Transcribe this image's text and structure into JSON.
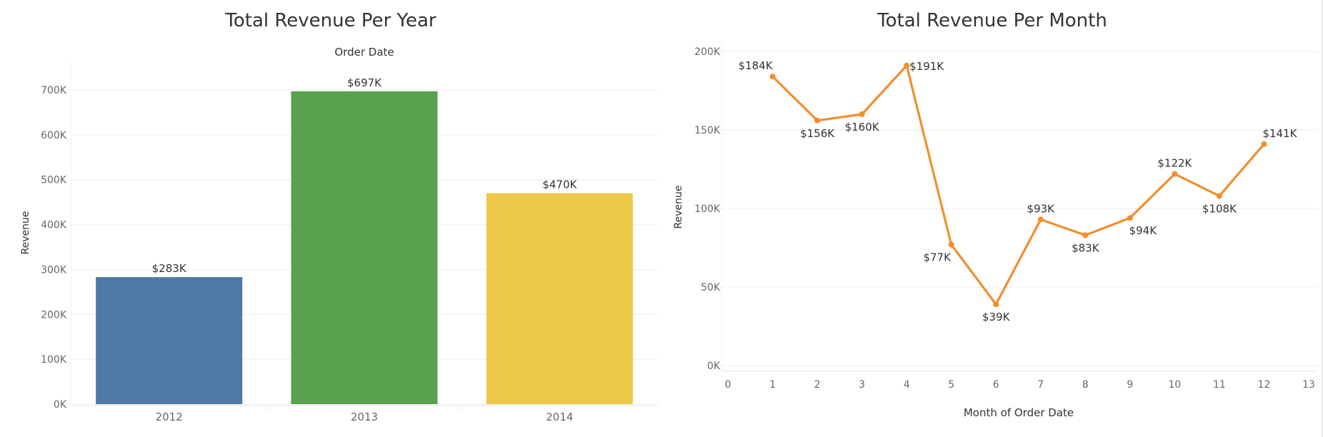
{
  "colors": {
    "bar_2012": "#4e79a7",
    "bar_2013": "#59a14f",
    "bar_2014": "#edc948",
    "line": "#f28e2b",
    "grid": "#ececec",
    "text": "#333333",
    "tick_text": "#666666"
  },
  "chart_data": [
    {
      "type": "bar",
      "title": "Total Revenue Per Year",
      "top_axis_label": "Order Date",
      "xlabel": "",
      "ylabel": "Revenue",
      "categories": [
        "2012",
        "2013",
        "2014"
      ],
      "values": [
        283000,
        697000,
        470000
      ],
      "data_labels": [
        "$283K",
        "$697K",
        "$470K"
      ],
      "ylim": [
        0,
        700000
      ],
      "yticks": [
        0,
        100000,
        200000,
        300000,
        400000,
        500000,
        600000,
        700000
      ],
      "ytick_labels": [
        "0K",
        "100K",
        "200K",
        "300K",
        "400K",
        "500K",
        "600K",
        "700K"
      ],
      "grid": true
    },
    {
      "type": "line",
      "title": "Total Revenue Per Month",
      "xlabel": "Month of Order Date",
      "ylabel": "Revenue",
      "x": [
        1,
        2,
        3,
        4,
        5,
        6,
        7,
        8,
        9,
        10,
        11,
        12
      ],
      "values": [
        184000,
        156000,
        160000,
        191000,
        77000,
        39000,
        93000,
        83000,
        94000,
        122000,
        108000,
        141000
      ],
      "data_labels": [
        "$184K",
        "$156K",
        "$160K",
        "$191K",
        "$77K",
        "$39K",
        "$93K",
        "$83K",
        "$94K",
        "$122K",
        "$108K",
        "$141K"
      ],
      "xlim": [
        0,
        13
      ],
      "xticks": [
        0,
        1,
        2,
        3,
        4,
        5,
        6,
        7,
        8,
        9,
        10,
        11,
        12,
        13
      ],
      "ylim": [
        0,
        200000
      ],
      "yticks": [
        0,
        50000,
        100000,
        150000,
        200000
      ],
      "ytick_labels": [
        "0K",
        "50K",
        "100K",
        "150K",
        "200K"
      ],
      "grid": true
    }
  ]
}
